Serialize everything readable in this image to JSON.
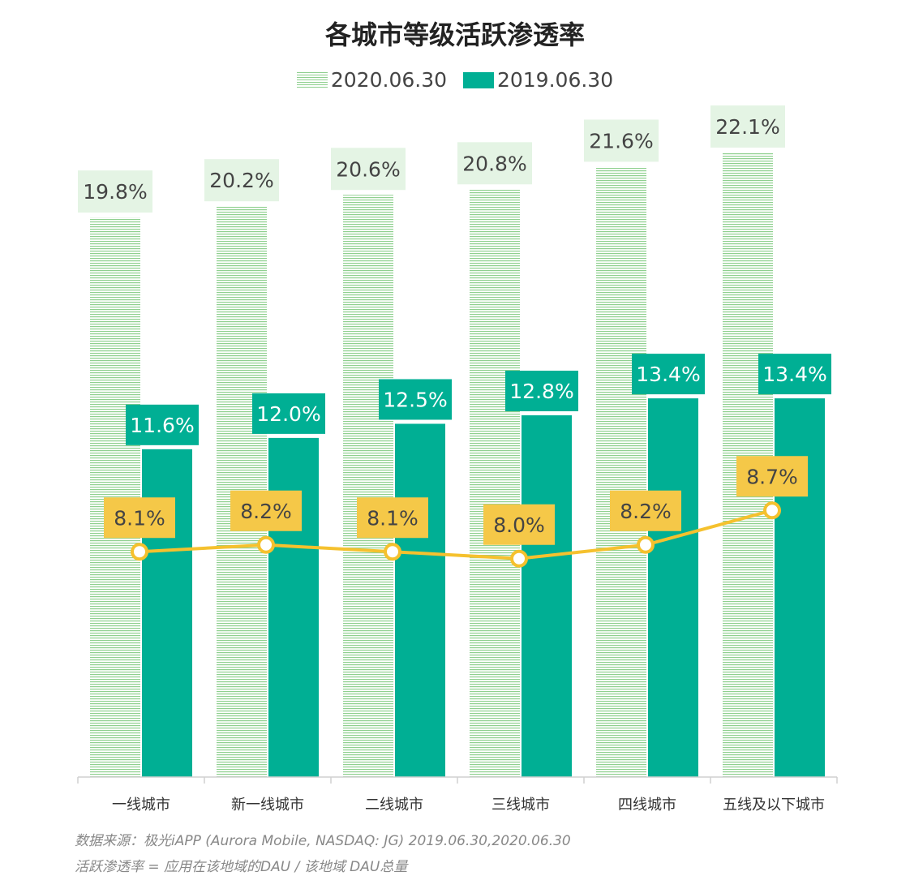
{
  "colors": {
    "series_2020": "#8fd08f",
    "series_2020_label_bg": "#e4f4e4",
    "series_2019": "#00af94",
    "line": "#f5c12e",
    "line_label_bg": "#f5c848"
  },
  "chart_data": {
    "type": "bar",
    "title": "各城市等级活跃渗透率",
    "categories": [
      "一线城市",
      "新一线城市",
      "二线城市",
      "三线城市",
      "四线城市",
      "五线及以下城市"
    ],
    "series": [
      {
        "name": "2020.06.30",
        "type": "bar",
        "values": [
          19.8,
          20.2,
          20.6,
          20.8,
          21.6,
          22.1
        ],
        "labels": [
          "19.8%",
          "20.2%",
          "20.6%",
          "20.8%",
          "21.6%",
          "22.1%"
        ]
      },
      {
        "name": "2019.06.30",
        "type": "bar",
        "values": [
          11.6,
          12.0,
          12.5,
          12.8,
          13.4,
          13.4
        ],
        "labels": [
          "11.6%",
          "12.0%",
          "12.5%",
          "12.8%",
          "13.4%",
          "13.4%"
        ]
      },
      {
        "type": "line",
        "values": [
          8.1,
          8.2,
          8.1,
          8.0,
          8.2,
          8.7
        ],
        "labels": [
          "8.1%",
          "8.2%",
          "8.1%",
          "8.0%",
          "8.2%",
          "8.7%"
        ]
      }
    ],
    "ylim": [
      0,
      22.1
    ],
    "legend_position": "top-center"
  },
  "footnotes": {
    "source": "数据来源：极光iAPP (Aurora Mobile, NASDAQ: JG) 2019.06.30,2020.06.30",
    "definition": "活跃渗透率 = 应用在该地域的DAU / 该地域 DAU总量"
  }
}
